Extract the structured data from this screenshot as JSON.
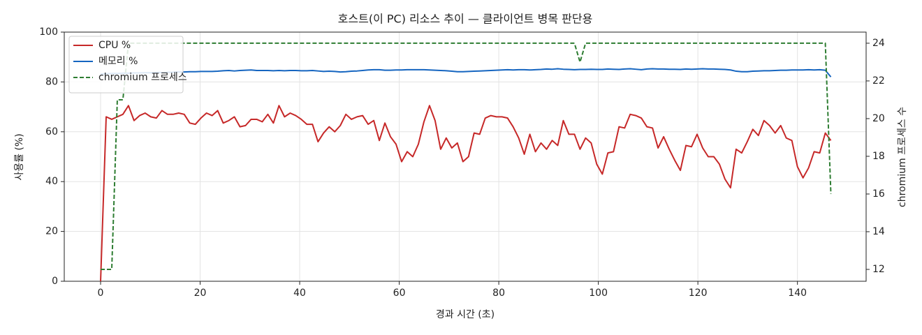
{
  "chart_data": {
    "type": "line",
    "title": "호스트(이 PC) 리소스 추이 — 클라이언트 병목 판단용",
    "x_label": "경과 시간 (초)",
    "y_label": "사용률 (%)",
    "y2_label": "chromium 프로세스 수",
    "xlim": [
      -7.3,
      153.8
    ],
    "xticks": [
      0,
      20,
      40,
      60,
      80,
      100,
      120,
      140
    ],
    "ylim": [
      0,
      100
    ],
    "yticks": [
      0,
      20,
      40,
      60,
      80,
      100
    ],
    "y2lim": [
      11.37,
      24.59
    ],
    "y2ticks": [
      12,
      14,
      16,
      18,
      20,
      22,
      24
    ],
    "grid": true,
    "legend": "upper-left",
    "x": [
      0,
      1.12,
      2.24,
      3.36,
      4.48,
      5.6,
      6.72,
      7.84,
      8.96,
      10.08,
      11.2,
      12.32,
      13.44,
      14.56,
      15.68,
      16.8,
      17.92,
      19.04,
      20.16,
      21.28,
      22.4,
      23.52,
      24.64,
      25.76,
      26.88,
      28,
      29.12,
      30.24,
      31.36,
      32.48,
      33.6,
      34.72,
      35.84,
      36.96,
      38.08,
      39.2,
      40.32,
      41.44,
      42.56,
      43.68,
      44.8,
      45.92,
      47.04,
      48.16,
      49.28,
      50.4,
      51.52,
      52.64,
      53.76,
      54.88,
      56,
      57.12,
      58.24,
      59.36,
      60.48,
      61.6,
      62.72,
      63.84,
      64.96,
      66.08,
      67.2,
      68.32,
      69.44,
      70.56,
      71.68,
      72.8,
      73.92,
      75.04,
      76.16,
      77.28,
      78.4,
      79.52,
      80.64,
      81.76,
      82.88,
      84,
      85.12,
      86.24,
      87.36,
      88.48,
      89.6,
      90.72,
      91.84,
      92.96,
      94.08,
      95.2,
      96.32,
      97.44,
      98.56,
      99.68,
      100.8,
      101.92,
      103.04,
      104.16,
      105.28,
      106.4,
      107.52,
      108.64,
      109.76,
      110.88,
      112,
      113.12,
      114.24,
      115.36,
      116.48,
      117.6,
      118.72,
      119.84,
      120.96,
      122.08,
      123.2,
      124.32,
      125.44,
      126.56,
      127.68,
      128.8,
      129.92,
      131.04,
      132.16,
      133.28,
      134.4,
      135.52,
      136.64,
      137.76,
      138.88,
      140,
      141.12,
      142.24,
      143.36,
      144.48,
      145.6,
      146.72
    ],
    "series": [
      {
        "name": "CPU %",
        "color": "#c62828",
        "linestyle": "solid",
        "values": [
          0,
          66,
          65,
          66,
          67,
          70.5,
          64.5,
          66.5,
          67.5,
          66,
          65.5,
          68.5,
          67,
          67,
          67.5,
          67,
          63.5,
          63,
          65.5,
          67.5,
          66.5,
          68.5,
          63.5,
          64.5,
          66,
          62,
          62.5,
          65,
          65,
          64,
          67,
          63.5,
          70.5,
          66,
          67.5,
          66.5,
          65,
          63,
          63,
          56,
          59.5,
          62,
          60,
          62.5,
          67,
          65,
          66,
          66.5,
          63,
          64.5,
          56.5,
          63.5,
          58,
          55,
          48,
          52,
          50,
          55,
          64,
          70.5,
          64.5,
          53,
          57.5,
          53.5,
          55.5,
          48,
          50,
          59.5,
          59,
          65.5,
          66.5,
          66,
          66,
          65.5,
          62,
          57.5,
          51,
          59,
          52,
          55.5,
          53,
          56.5,
          54.5,
          64.5,
          59,
          59,
          53,
          57.5,
          55.5,
          47,
          43,
          51.5,
          52,
          62,
          61.5,
          67,
          66.5,
          65.5,
          62,
          61.5,
          53.5,
          58,
          53,
          48.5,
          44.5,
          54.5,
          54,
          59,
          53.5,
          50,
          50,
          47,
          41,
          37.5,
          53,
          51.5,
          56,
          61,
          58.5,
          64.5,
          62.5,
          59.5,
          62.5,
          57.5,
          56.5,
          46,
          41.5,
          45.5,
          52,
          51.5,
          59.5,
          56.5
        ]
      },
      {
        "name": "메모리 %",
        "color": "#1565c0",
        "linestyle": "solid",
        "values": [
          83.2,
          83.3,
          83.4,
          83.4,
          83.5,
          83.5,
          83.6,
          83.6,
          83.7,
          83.7,
          83.8,
          83.8,
          83.9,
          83.9,
          84.0,
          84.0,
          84.1,
          84.1,
          84.2,
          84.2,
          84.2,
          84.3,
          84.5,
          84.6,
          84.4,
          84.6,
          84.7,
          84.8,
          84.6,
          84.6,
          84.6,
          84.5,
          84.6,
          84.5,
          84.6,
          84.6,
          84.5,
          84.5,
          84.6,
          84.4,
          84.2,
          84.3,
          84.2,
          84.0,
          84.1,
          84.3,
          84.4,
          84.6,
          84.8,
          84.9,
          84.9,
          84.7,
          84.7,
          84.8,
          84.8,
          84.9,
          84.9,
          84.9,
          84.9,
          84.8,
          84.7,
          84.6,
          84.5,
          84.3,
          84.1,
          84.1,
          84.2,
          84.3,
          84.4,
          84.5,
          84.6,
          84.7,
          84.8,
          84.9,
          84.8,
          84.9,
          84.9,
          84.8,
          84.9,
          85.0,
          85.2,
          85.1,
          85.3,
          85.1,
          85.0,
          84.9,
          85.0,
          85.0,
          85.1,
          85.0,
          85.0,
          85.2,
          85.1,
          85.0,
          85.2,
          85.3,
          85.1,
          84.9,
          85.2,
          85.3,
          85.2,
          85.2,
          85.1,
          85.1,
          85.0,
          85.2,
          85.1,
          85.2,
          85.3,
          85.2,
          85.2,
          85.1,
          85.0,
          84.8,
          84.3,
          84.1,
          84.1,
          84.3,
          84.4,
          84.5,
          84.5,
          84.6,
          84.7,
          84.7,
          84.8,
          84.8,
          84.8,
          84.9,
          84.8,
          84.9,
          84.7,
          82.0
        ]
      },
      {
        "name": "chromium 프로세스",
        "color": "#2e7d32",
        "linestyle": "dashed",
        "axis": "y2",
        "values": [
          12,
          12,
          12,
          21,
          21,
          24,
          24,
          24,
          24,
          24,
          24,
          24,
          24,
          24,
          24,
          24,
          24,
          24,
          24,
          24,
          24,
          24,
          24,
          24,
          24,
          24,
          24,
          24,
          24,
          24,
          24,
          24,
          24,
          24,
          24,
          24,
          24,
          24,
          24,
          24,
          24,
          24,
          24,
          24,
          24,
          24,
          24,
          24,
          24,
          24,
          24,
          24,
          24,
          24,
          24,
          24,
          24,
          24,
          24,
          24,
          24,
          24,
          24,
          24,
          24,
          24,
          24,
          24,
          24,
          24,
          24,
          24,
          24,
          24,
          24,
          24,
          24,
          24,
          24,
          24,
          24,
          24,
          24,
          24,
          24,
          24,
          23,
          24,
          24,
          24,
          24,
          24,
          24,
          24,
          24,
          24,
          24,
          24,
          24,
          24,
          24,
          24,
          24,
          24,
          24,
          24,
          24,
          24,
          24,
          24,
          24,
          24,
          24,
          24,
          24,
          24,
          24,
          24,
          24,
          24,
          24,
          24,
          24,
          24,
          24,
          24,
          24,
          24,
          24,
          24,
          24,
          16
        ]
      }
    ]
  }
}
